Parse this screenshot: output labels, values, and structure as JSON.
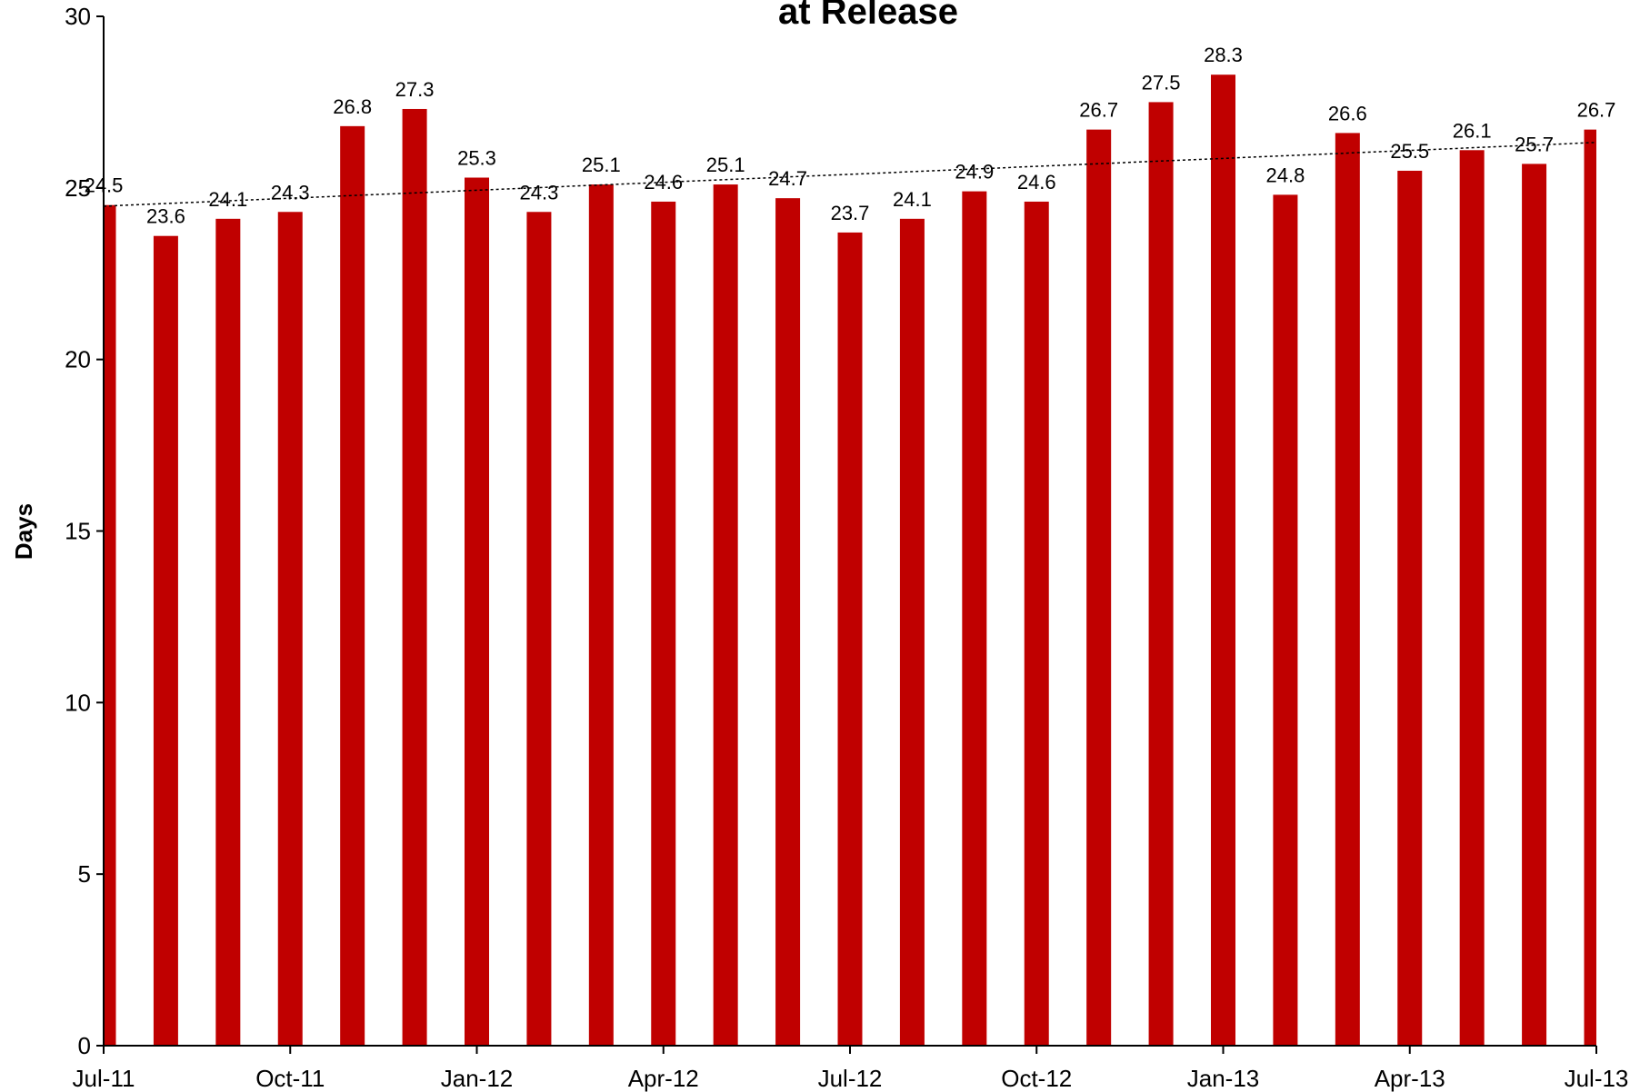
{
  "chart_data": {
    "type": "bar",
    "title": "at Release",
    "ylabel": "Days",
    "xlabel": "",
    "ylim": [
      0,
      30
    ],
    "y_ticks": [
      0,
      5,
      10,
      15,
      20,
      25,
      30
    ],
    "x_tick_labels": [
      "Jul-11",
      "Oct-11",
      "Jan-12",
      "Apr-12",
      "Jul-12",
      "Oct-12",
      "Jan-13",
      "Apr-13",
      "Jul-13"
    ],
    "categories": [
      "Jul-11",
      "Aug-11",
      "Sep-11",
      "Oct-11",
      "Nov-11",
      "Dec-11",
      "Jan-12",
      "Feb-12",
      "Mar-12",
      "Apr-12",
      "May-12",
      "Jun-12",
      "Jul-12",
      "Aug-12",
      "Sep-12",
      "Oct-12",
      "Nov-12",
      "Dec-12",
      "Jan-13",
      "Feb-13",
      "Mar-13",
      "Apr-13",
      "May-13",
      "Jun-13",
      "Jul-13"
    ],
    "values": [
      24.5,
      23.6,
      24.1,
      24.3,
      26.8,
      27.3,
      25.3,
      24.3,
      25.1,
      24.6,
      25.1,
      24.7,
      23.7,
      24.1,
      24.9,
      24.6,
      26.7,
      27.5,
      28.3,
      24.8,
      26.6,
      25.5,
      26.1,
      25.7,
      26.7
    ],
    "bar_color": "#C00000",
    "trendline": {
      "type": "linear",
      "style": "dotted",
      "color": "#000000"
    },
    "grid": false,
    "legend": "none"
  }
}
